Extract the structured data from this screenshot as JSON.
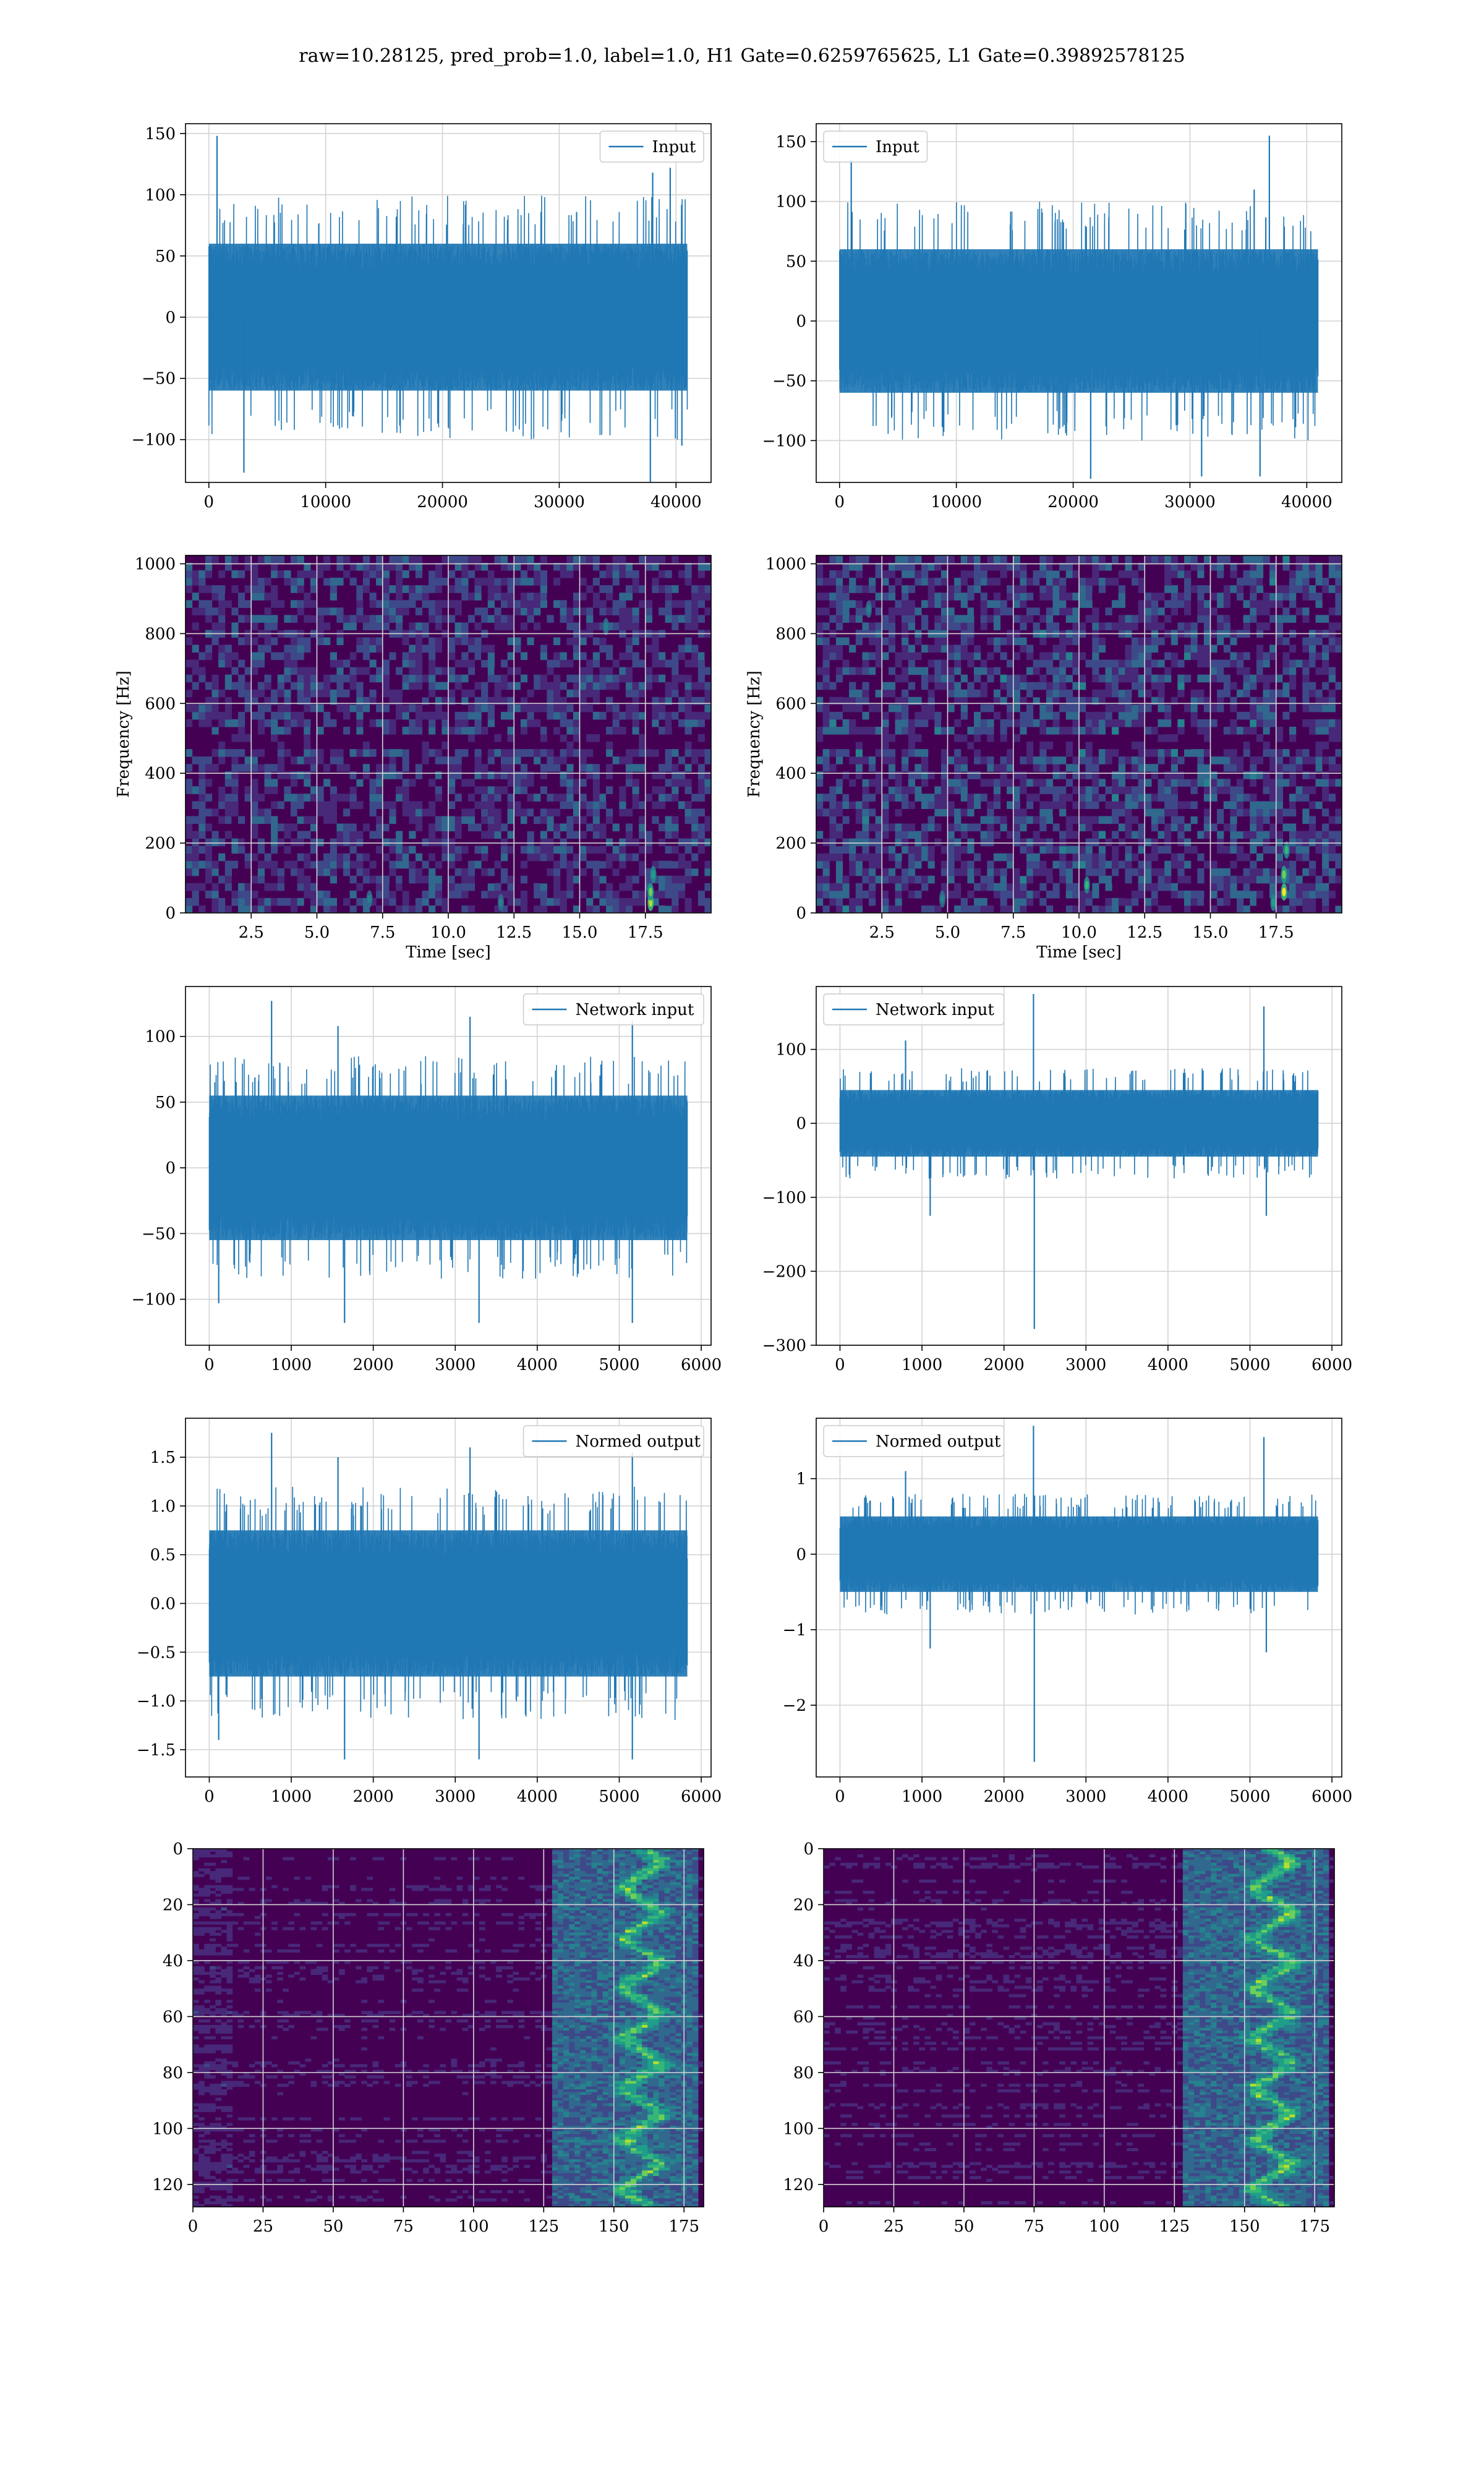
{
  "figure": {
    "title": "raw=10.28125, pred_prob=1.0, label=1.0, H1 Gate=0.6259765625, L1 Gate=0.39892578125"
  },
  "colors": {
    "line": "#1f77b4",
    "grid": "#d3d3d3",
    "spectrogram_background": "#440154",
    "spectrogram_palette": [
      "#440154",
      "#482878",
      "#3e4989",
      "#31688e",
      "#26828e",
      "#1f9e89",
      "#35b779",
      "#6ece58",
      "#b5de2b",
      "#fde725"
    ]
  },
  "chart_data": [
    {
      "id": "row1-left",
      "type": "line",
      "detector": "H1",
      "legend": [
        "Input"
      ],
      "legend_position": "upper right",
      "xlim": [
        -2000,
        43000
      ],
      "ylim": [
        -135,
        158
      ],
      "xticks": [
        0,
        10000,
        20000,
        30000,
        40000
      ],
      "yticks": [
        -100,
        -50,
        0,
        50,
        100,
        150
      ],
      "n_samples": 40960,
      "envelope": {
        "typical_upper": 60,
        "typical_lower": -60,
        "spike_upper": 100,
        "spike_lower": -100
      },
      "notable_peaks": [
        [
          700,
          148
        ],
        [
          39500,
          122
        ],
        [
          38000,
          118
        ]
      ],
      "notable_troughs": [
        [
          3000,
          -127
        ],
        [
          37800,
          -135
        ],
        [
          40500,
          -105
        ]
      ],
      "grid": true
    },
    {
      "id": "row1-right",
      "type": "line",
      "detector": "L1",
      "legend": [
        "Input"
      ],
      "legend_position": "upper left",
      "xlim": [
        -2000,
        43000
      ],
      "ylim": [
        -135,
        165
      ],
      "xticks": [
        0,
        10000,
        20000,
        30000,
        40000
      ],
      "yticks": [
        -100,
        -50,
        0,
        50,
        100,
        150
      ],
      "n_samples": 40960,
      "envelope": {
        "typical_upper": 60,
        "typical_lower": -60,
        "spike_upper": 100,
        "spike_lower": -100
      },
      "notable_peaks": [
        [
          36800,
          155
        ],
        [
          1000,
          135
        ],
        [
          35500,
          110
        ]
      ],
      "notable_troughs": [
        [
          21500,
          -132
        ],
        [
          31000,
          -130
        ],
        [
          36000,
          -130
        ]
      ],
      "grid": true
    },
    {
      "id": "row2-left",
      "type": "heatmap",
      "detector": "H1",
      "xlabel": "Time [sec]",
      "ylabel": "Frequency [Hz]",
      "xlim": [
        0,
        20
      ],
      "ylim": [
        0,
        1024
      ],
      "xticks": [
        2.5,
        5.0,
        7.5,
        10.0,
        12.5,
        15.0,
        17.5
      ],
      "yticks": [
        0,
        200,
        400,
        600,
        800,
        1000
      ],
      "rows": 48,
      "cols": 80,
      "noise_mean": 0.28,
      "dark_band_hz": [
        480,
        500
      ],
      "hotspots": [
        [
          17.7,
          30,
          0.9
        ],
        [
          17.7,
          60,
          0.8
        ],
        [
          17.8,
          110,
          0.6
        ],
        [
          7.0,
          40,
          0.55
        ],
        [
          12.0,
          30,
          0.5
        ],
        [
          16.0,
          820,
          0.5
        ]
      ],
      "grid": true
    },
    {
      "id": "row2-right",
      "type": "heatmap",
      "detector": "L1",
      "xlabel": "Time [sec]",
      "ylabel": "Frequency [Hz]",
      "xlim": [
        0,
        20
      ],
      "ylim": [
        0,
        1024
      ],
      "xticks": [
        2.5,
        5.0,
        7.5,
        10.0,
        12.5,
        15.0,
        17.5
      ],
      "yticks": [
        0,
        200,
        400,
        600,
        800,
        1000
      ],
      "rows": 48,
      "cols": 80,
      "noise_mean": 0.32,
      "dark_band_hz": [
        480,
        500
      ],
      "hotspots": [
        [
          17.8,
          60,
          1.0
        ],
        [
          17.8,
          110,
          0.85
        ],
        [
          17.9,
          180,
          0.7
        ],
        [
          10.3,
          80,
          0.7
        ],
        [
          4.8,
          40,
          0.55
        ],
        [
          17.4,
          30,
          0.6
        ],
        [
          2.0,
          870,
          0.5
        ]
      ],
      "grid": true
    },
    {
      "id": "row3-left",
      "type": "line",
      "detector": "H1",
      "legend": [
        "Network input"
      ],
      "legend_position": "upper right",
      "xlim": [
        -290,
        6120
      ],
      "ylim": [
        -135,
        138
      ],
      "xticks": [
        0,
        1000,
        2000,
        3000,
        4000,
        5000,
        6000
      ],
      "yticks": [
        -100,
        -50,
        0,
        50,
        100
      ],
      "n_samples": 5830,
      "envelope": {
        "typical_upper": 55,
        "typical_lower": -55,
        "spike_upper": 85,
        "spike_lower": -85
      },
      "notable_peaks": [
        [
          760,
          127
        ],
        [
          5160,
          112
        ],
        [
          3180,
          115
        ],
        [
          1570,
          108
        ]
      ],
      "notable_troughs": [
        [
          1650,
          -118
        ],
        [
          5160,
          -118
        ],
        [
          3290,
          -118
        ],
        [
          115,
          -103
        ]
      ],
      "grid": true
    },
    {
      "id": "row3-right",
      "type": "line",
      "detector": "L1",
      "legend": [
        "Network input"
      ],
      "legend_position": "upper left",
      "xlim": [
        -290,
        6120
      ],
      "ylim": [
        -300,
        185
      ],
      "xticks": [
        0,
        1000,
        2000,
        3000,
        4000,
        5000,
        6000
      ],
      "yticks": [
        -300,
        -200,
        -100,
        0,
        100
      ],
      "n_samples": 5830,
      "envelope": {
        "typical_upper": 45,
        "typical_lower": -45,
        "spike_upper": 75,
        "spike_lower": -75
      },
      "notable_peaks": [
        [
          2360,
          175
        ],
        [
          5170,
          158
        ],
        [
          800,
          112
        ]
      ],
      "notable_troughs": [
        [
          2370,
          -278
        ],
        [
          5200,
          -125
        ],
        [
          1100,
          -125
        ]
      ],
      "grid": true
    },
    {
      "id": "row4-left",
      "type": "line",
      "detector": "H1",
      "legend": [
        "Normed output"
      ],
      "legend_position": "upper right",
      "xlim": [
        -290,
        6120
      ],
      "ylim": [
        -1.78,
        1.9
      ],
      "xticks": [
        0,
        1000,
        2000,
        3000,
        4000,
        5000,
        6000
      ],
      "yticks": [
        -1.5,
        -1.0,
        -0.5,
        0.0,
        0.5,
        1.0,
        1.5
      ],
      "n_samples": 5830,
      "envelope": {
        "typical_upper": 0.75,
        "typical_lower": -0.75,
        "spike_upper": 1.2,
        "spike_lower": -1.2
      },
      "notable_peaks": [
        [
          760,
          1.75
        ],
        [
          5160,
          1.55
        ],
        [
          3180,
          1.6
        ],
        [
          1570,
          1.5
        ]
      ],
      "notable_troughs": [
        [
          1650,
          -1.6
        ],
        [
          5160,
          -1.6
        ],
        [
          3290,
          -1.6
        ],
        [
          115,
          -1.4
        ]
      ],
      "grid": true
    },
    {
      "id": "row4-right",
      "type": "line",
      "detector": "L1",
      "legend": [
        "Normed output"
      ],
      "legend_position": "upper left",
      "xlim": [
        -290,
        6120
      ],
      "ylim": [
        -2.95,
        1.8
      ],
      "xticks": [
        0,
        1000,
        2000,
        3000,
        4000,
        5000,
        6000
      ],
      "yticks": [
        -2,
        -1,
        0,
        1
      ],
      "n_samples": 5830,
      "envelope": {
        "typical_upper": 0.5,
        "typical_lower": -0.5,
        "spike_upper": 0.8,
        "spike_lower": -0.8
      },
      "notable_peaks": [
        [
          2360,
          1.7
        ],
        [
          5170,
          1.55
        ],
        [
          800,
          1.1
        ]
      ],
      "notable_troughs": [
        [
          2370,
          -2.75
        ],
        [
          5200,
          -1.3
        ],
        [
          1100,
          -1.25
        ]
      ],
      "grid": true
    },
    {
      "id": "row5-left",
      "type": "heatmap",
      "detector": "H1",
      "xlim": [
        0,
        182
      ],
      "ylim": [
        128,
        0
      ],
      "xticks": [
        0,
        25,
        50,
        75,
        100,
        125,
        150,
        175
      ],
      "yticks": [
        0,
        20,
        40,
        60,
        80,
        100,
        120
      ],
      "rows": 128,
      "cols": 182,
      "noise_mean": 0.08,
      "bright_region_x": [
        128,
        180
      ],
      "hot_column_x": 160,
      "left_edge_activity": true,
      "grid": true
    },
    {
      "id": "row5-right",
      "type": "heatmap",
      "detector": "L1",
      "xlim": [
        0,
        182
      ],
      "ylim": [
        128,
        0
      ],
      "xticks": [
        0,
        25,
        50,
        75,
        100,
        125,
        150,
        175
      ],
      "yticks": [
        0,
        20,
        40,
        60,
        80,
        100,
        120
      ],
      "rows": 128,
      "cols": 182,
      "noise_mean": 0.08,
      "bright_region_x": [
        128,
        180
      ],
      "hot_column_x": 160,
      "left_edge_activity": false,
      "grid": true
    }
  ]
}
